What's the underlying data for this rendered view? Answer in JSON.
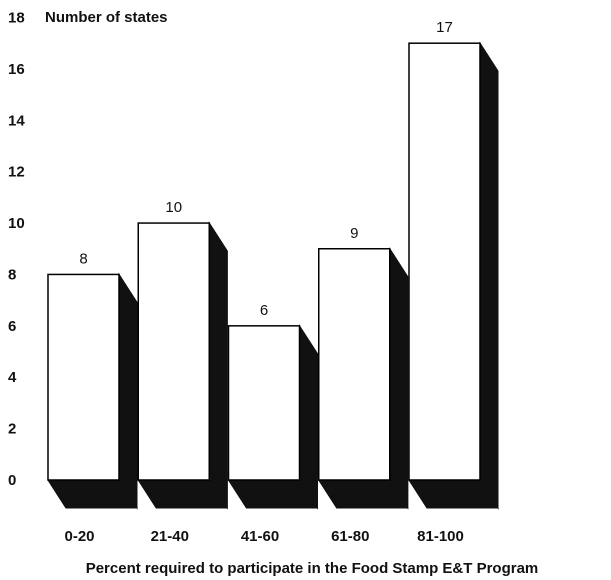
{
  "chart_data": {
    "type": "bar",
    "categories": [
      "0-20",
      "21-40",
      "41-60",
      "61-80",
      "81-100"
    ],
    "values": [
      8,
      10,
      6,
      9,
      17
    ],
    "title": "",
    "xlabel": "Percent required to participate in the Food Stamp E&T Program",
    "ylabel": "Number of states",
    "ylim": [
      0,
      18
    ],
    "yticks": [
      0,
      2,
      4,
      6,
      8,
      10,
      12,
      14,
      16,
      18
    ],
    "grid": false,
    "legend": "none",
    "style": "3d-extruded",
    "colors": {
      "bar_face": "#ffffff",
      "bar_outline": "#000000",
      "bar_shadow": "#111111",
      "text": "#111111"
    }
  }
}
